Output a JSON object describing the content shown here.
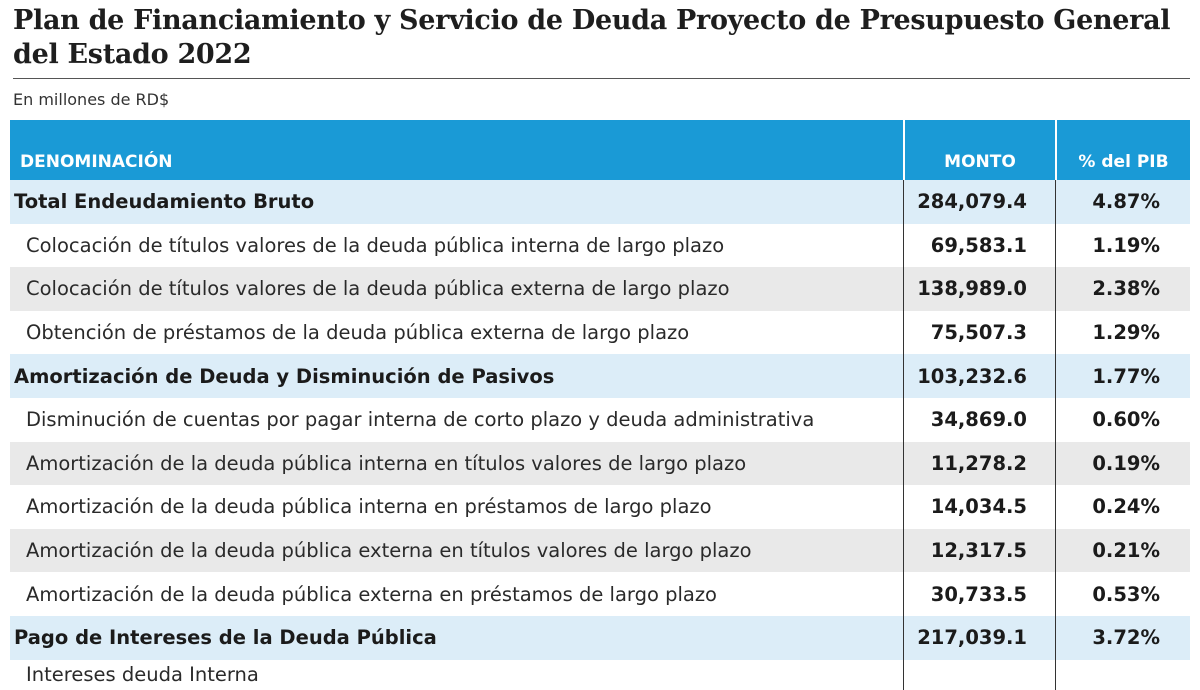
{
  "title": "Plan de Financiamiento y Servicio de Deuda Proyecto de Presupuesto General del Estado 2022",
  "subtitle": "En millones de RD$",
  "colors": {
    "header": "#1a9ad6",
    "group_row": "#dcedf8",
    "shaded_row": "#e9e9e9"
  },
  "chart_data": {
    "type": "table",
    "columns": [
      "DENOMINACIÓN",
      "MONTO",
      "% del PIB"
    ],
    "rows": [
      {
        "kind": "group",
        "shaded": false,
        "label": "Total Endeudamiento Bruto",
        "monto": "284,079.4",
        "pib": "4.87%"
      },
      {
        "kind": "item",
        "shaded": false,
        "label": "Colocación de títulos valores de la deuda pública interna de largo plazo",
        "monto": "69,583.1",
        "pib": "1.19%"
      },
      {
        "kind": "item",
        "shaded": true,
        "label": "Colocación de títulos valores de la deuda pública externa de largo plazo",
        "monto": "138,989.0",
        "pib": "2.38%"
      },
      {
        "kind": "item",
        "shaded": false,
        "label": "Obtención de préstamos de la deuda pública externa de largo plazo",
        "monto": "75,507.3",
        "pib": "1.29%"
      },
      {
        "kind": "group",
        "shaded": false,
        "label": "Amortización de Deuda y Disminución de Pasivos",
        "monto": "103,232.6",
        "pib": "1.77%"
      },
      {
        "kind": "item",
        "shaded": false,
        "label": "Disminución de cuentas por pagar interna de corto plazo y deuda administrativa",
        "monto": "34,869.0",
        "pib": "0.60%"
      },
      {
        "kind": "item",
        "shaded": true,
        "label": "Amortización de la deuda pública interna en títulos valores de largo plazo",
        "monto": "11,278.2",
        "pib": "0.19%"
      },
      {
        "kind": "item",
        "shaded": false,
        "label": "Amortización de la deuda pública interna en préstamos de largo plazo",
        "monto": "14,034.5",
        "pib": "0.24%"
      },
      {
        "kind": "item",
        "shaded": true,
        "label": "Amortización de la deuda pública externa en títulos valores de largo plazo",
        "monto": "12,317.5",
        "pib": "0.21%"
      },
      {
        "kind": "item",
        "shaded": false,
        "label": "Amortización de la deuda pública externa en préstamos de largo plazo",
        "monto": "30,733.5",
        "pib": "0.53%"
      },
      {
        "kind": "group",
        "shaded": false,
        "label": "Pago de Intereses de la Deuda Pública",
        "monto": "217,039.1",
        "pib": "3.72%"
      },
      {
        "kind": "item cut",
        "shaded": false,
        "label": "Intereses deuda Interna",
        "monto": "",
        "pib": ""
      }
    ]
  }
}
